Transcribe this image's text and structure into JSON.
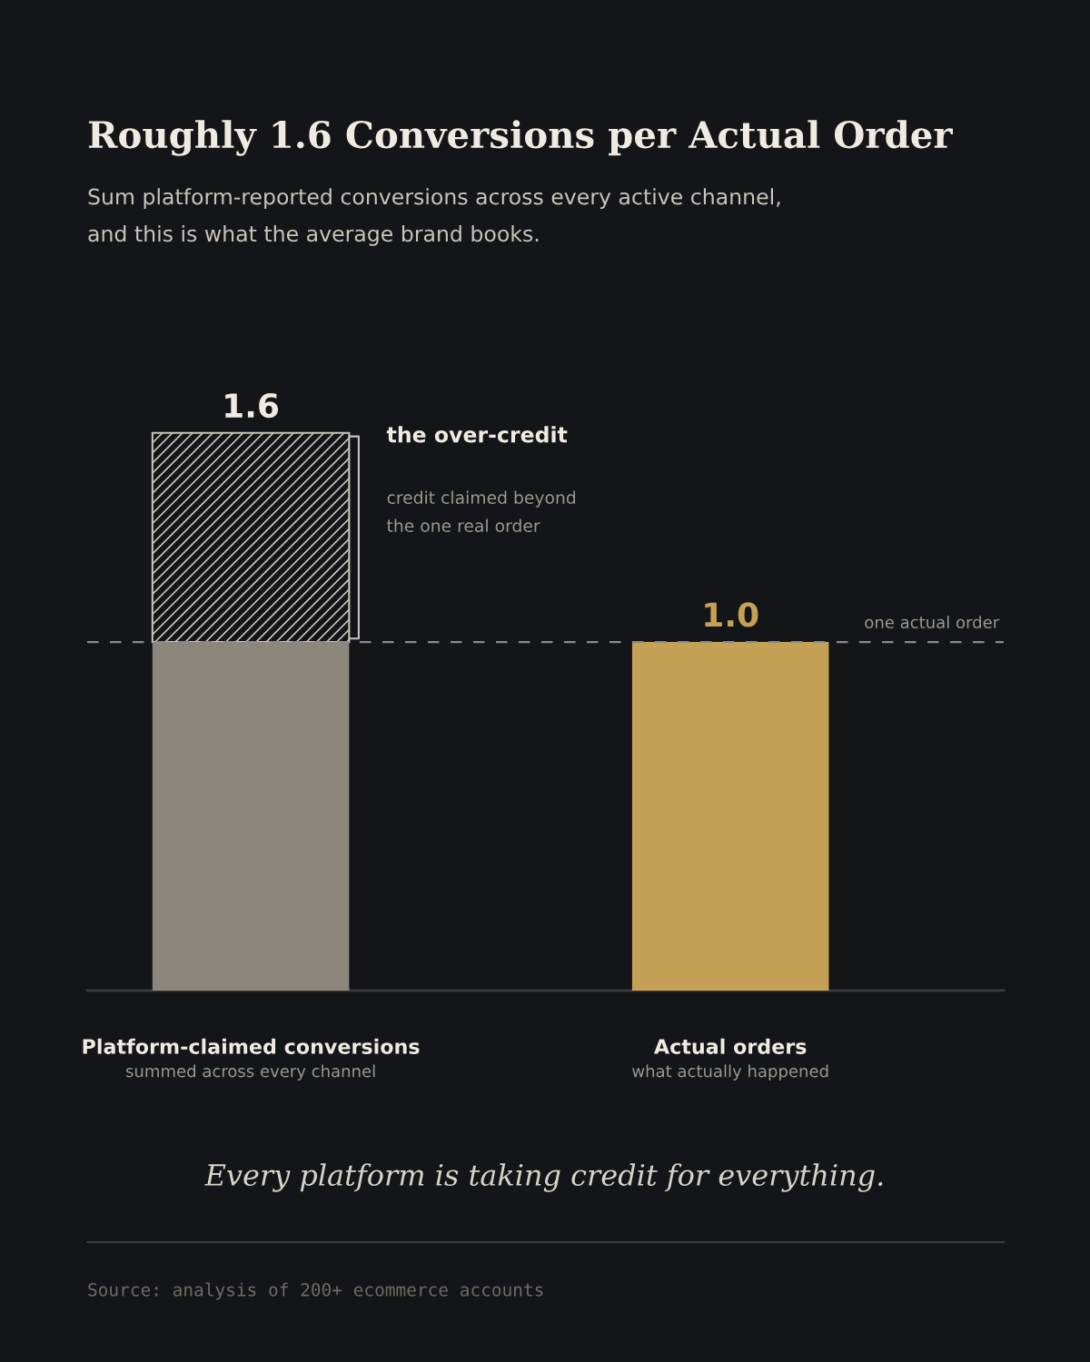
{
  "chart_data": {
    "type": "bar",
    "title": "Roughly 1.6 Conversions per Actual Order",
    "subtitle": "Sum platform-reported conversions across every active channel,\nand this is what the average brand books.",
    "categories": [
      "Platform-claimed conversions",
      "Actual orders"
    ],
    "series": [
      {
        "colors": [
          "#8b877c",
          "#c5a155"
        ],
        "values": [
          1.0,
          1.0
        ],
        "value_labels": [
          null,
          "1.0"
        ]
      },
      {
        "color": "#c8c4bb",
        "values": [
          0.6,
          null
        ]
      }
    ],
    "stacked": true,
    "totals": [
      "1.6",
      null
    ],
    "tick_labels": "x",
    "grid": false,
    "legend": false,
    "ref_lines": [
      {
        "axis": "y",
        "value": 1.0,
        "label": "one actual order",
        "color": "#8a8a8a",
        "line_style": "dashed"
      }
    ],
    "annotations": [
      "summed across every channel",
      "what actually happened",
      "the over-credit",
      "credit claimed beyond\nthe one real order",
      "Every platform is taking credit for everything.",
      "Source: analysis of 200+ ecommerce accounts"
    ]
  }
}
